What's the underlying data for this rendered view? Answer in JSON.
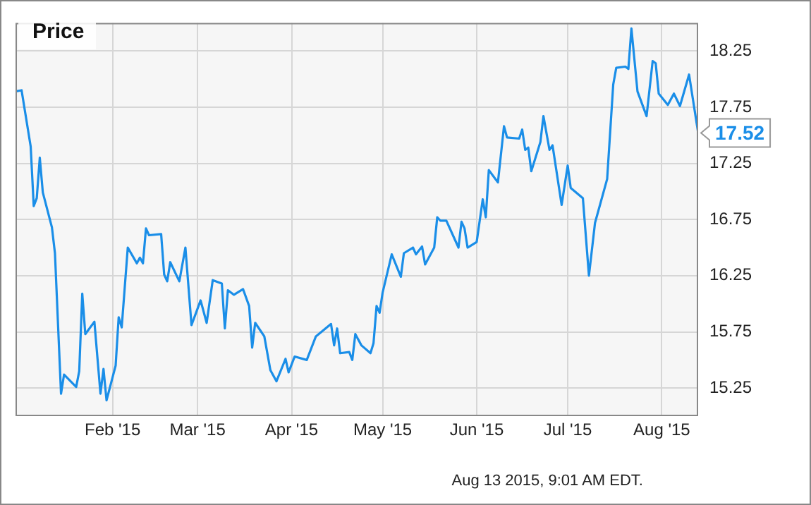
{
  "chart_data": {
    "type": "line",
    "title": "Price",
    "x": [
      "2014-12-31",
      "2015-01-02",
      "2015-01-05",
      "2015-01-06",
      "2015-01-07",
      "2015-01-08",
      "2015-01-09",
      "2015-01-12",
      "2015-01-13",
      "2015-01-15",
      "2015-01-16",
      "2015-01-20",
      "2015-01-21",
      "2015-01-22",
      "2015-01-23",
      "2015-01-26",
      "2015-01-28",
      "2015-01-29",
      "2015-01-30",
      "2015-02-02",
      "2015-02-03",
      "2015-02-04",
      "2015-02-06",
      "2015-02-09",
      "2015-02-10",
      "2015-02-11",
      "2015-02-12",
      "2015-02-13",
      "2015-02-17",
      "2015-02-18",
      "2015-02-19",
      "2015-02-20",
      "2015-02-23",
      "2015-02-25",
      "2015-02-27",
      "2015-03-02",
      "2015-03-04",
      "2015-03-06",
      "2015-03-09",
      "2015-03-10",
      "2015-03-11",
      "2015-03-13",
      "2015-03-16",
      "2015-03-18",
      "2015-03-19",
      "2015-03-20",
      "2015-03-23",
      "2015-03-25",
      "2015-03-27",
      "2015-03-30",
      "2015-03-31",
      "2015-04-02",
      "2015-04-06",
      "2015-04-09",
      "2015-04-14",
      "2015-04-15",
      "2015-04-16",
      "2015-04-17",
      "2015-04-20",
      "2015-04-21",
      "2015-04-22",
      "2015-04-24",
      "2015-04-27",
      "2015-04-28",
      "2015-04-29",
      "2015-04-30",
      "2015-05-01",
      "2015-05-04",
      "2015-05-07",
      "2015-05-08",
      "2015-05-11",
      "2015-05-12",
      "2015-05-14",
      "2015-05-15",
      "2015-05-18",
      "2015-05-19",
      "2015-05-20",
      "2015-05-22",
      "2015-05-26",
      "2015-05-27",
      "2015-05-28",
      "2015-05-29",
      "2015-06-01",
      "2015-06-03",
      "2015-06-04",
      "2015-06-05",
      "2015-06-08",
      "2015-06-10",
      "2015-06-11",
      "2015-06-15",
      "2015-06-16",
      "2015-06-17",
      "2015-06-18",
      "2015-06-19",
      "2015-06-22",
      "2015-06-23",
      "2015-06-25",
      "2015-06-26",
      "2015-06-29",
      "2015-07-01",
      "2015-07-02",
      "2015-07-06",
      "2015-07-08",
      "2015-07-10",
      "2015-07-14",
      "2015-07-16",
      "2015-07-17",
      "2015-07-20",
      "2015-07-21",
      "2015-07-22",
      "2015-07-24",
      "2015-07-27",
      "2015-07-29",
      "2015-07-30",
      "2015-07-31",
      "2015-08-03",
      "2015-08-05",
      "2015-08-07",
      "2015-08-10",
      "2015-08-13"
    ],
    "series": [
      {
        "color": "#1a8ee8",
        "values": [
          17.89,
          17.9,
          17.4,
          16.87,
          16.94,
          17.3,
          16.99,
          16.68,
          16.45,
          15.2,
          15.37,
          15.26,
          15.4,
          16.09,
          15.73,
          15.84,
          15.2,
          15.42,
          15.14,
          15.45,
          15.88,
          15.79,
          16.5,
          16.36,
          16.41,
          16.36,
          16.67,
          16.61,
          16.62,
          16.26,
          16.2,
          16.37,
          16.2,
          16.5,
          15.81,
          16.03,
          15.83,
          16.21,
          16.18,
          15.78,
          16.12,
          16.08,
          16.13,
          15.98,
          15.61,
          15.83,
          15.71,
          15.41,
          15.31,
          15.51,
          15.39,
          15.53,
          15.5,
          15.71,
          15.82,
          15.63,
          15.78,
          15.56,
          15.57,
          15.5,
          15.73,
          15.63,
          15.56,
          15.65,
          15.98,
          15.92,
          16.1,
          16.44,
          16.24,
          16.45,
          16.5,
          16.44,
          16.51,
          16.35,
          16.5,
          16.77,
          16.74,
          16.74,
          16.5,
          16.73,
          16.67,
          16.5,
          16.55,
          16.93,
          16.77,
          17.19,
          17.08,
          17.58,
          17.48,
          17.47,
          17.55,
          17.37,
          17.39,
          17.18,
          17.44,
          17.67,
          17.37,
          17.41,
          16.88,
          17.23,
          17.03,
          16.94,
          16.25,
          16.72,
          17.11,
          17.95,
          18.1,
          18.11,
          18.09,
          18.45,
          17.89,
          17.67,
          18.16,
          18.14,
          17.87,
          17.77,
          17.87,
          17.76,
          18.04,
          17.52
        ],
        "value_labels": [
          null,
          null,
          null,
          null,
          null,
          null,
          null,
          null,
          null,
          null,
          null,
          null,
          null,
          null,
          null,
          null,
          null,
          null,
          null,
          null,
          null,
          null,
          null,
          null,
          null,
          null,
          null,
          null,
          null,
          null,
          null,
          null,
          null,
          null,
          null,
          null,
          null,
          null,
          null,
          null,
          null,
          null,
          null,
          null,
          null,
          null,
          null,
          null,
          null,
          null,
          null,
          null,
          null,
          null,
          null,
          null,
          null,
          null,
          null,
          null,
          null,
          null,
          null,
          null,
          null,
          null,
          null,
          null,
          null,
          null,
          null,
          null,
          null,
          null,
          null,
          null,
          null,
          null,
          null,
          null,
          null,
          null,
          null,
          null,
          null,
          null,
          null,
          null,
          null,
          null,
          null,
          null,
          null,
          null,
          null,
          null,
          null,
          null,
          null,
          null,
          null,
          null,
          null,
          null,
          null,
          null,
          null,
          null,
          null,
          null,
          null,
          null,
          null,
          null,
          null,
          null,
          null,
          null,
          null,
          "17.52"
        ]
      }
    ],
    "xlim": [
      "2014-12-31",
      "2015-08-13"
    ],
    "xticks": [
      {
        "value": "2015-02-01",
        "label": "Feb '15"
      },
      {
        "value": "2015-03-01",
        "label": "Mar '15"
      },
      {
        "value": "2015-04-01",
        "label": "Apr '15"
      },
      {
        "value": "2015-05-01",
        "label": "May '15"
      },
      {
        "value": "2015-06-01",
        "label": "Jun '15"
      },
      {
        "value": "2015-07-01",
        "label": "Jul '15"
      },
      {
        "value": "2015-08-01",
        "label": "Aug '15"
      }
    ],
    "ylim": [
      15.0,
      18.5
    ],
    "yticks": [
      15.25,
      15.75,
      16.25,
      16.75,
      17.25,
      17.75,
      18.25
    ],
    "grid": true,
    "annotations": [
      "Aug 13 2015, 9:01 AM EDT."
    ]
  }
}
